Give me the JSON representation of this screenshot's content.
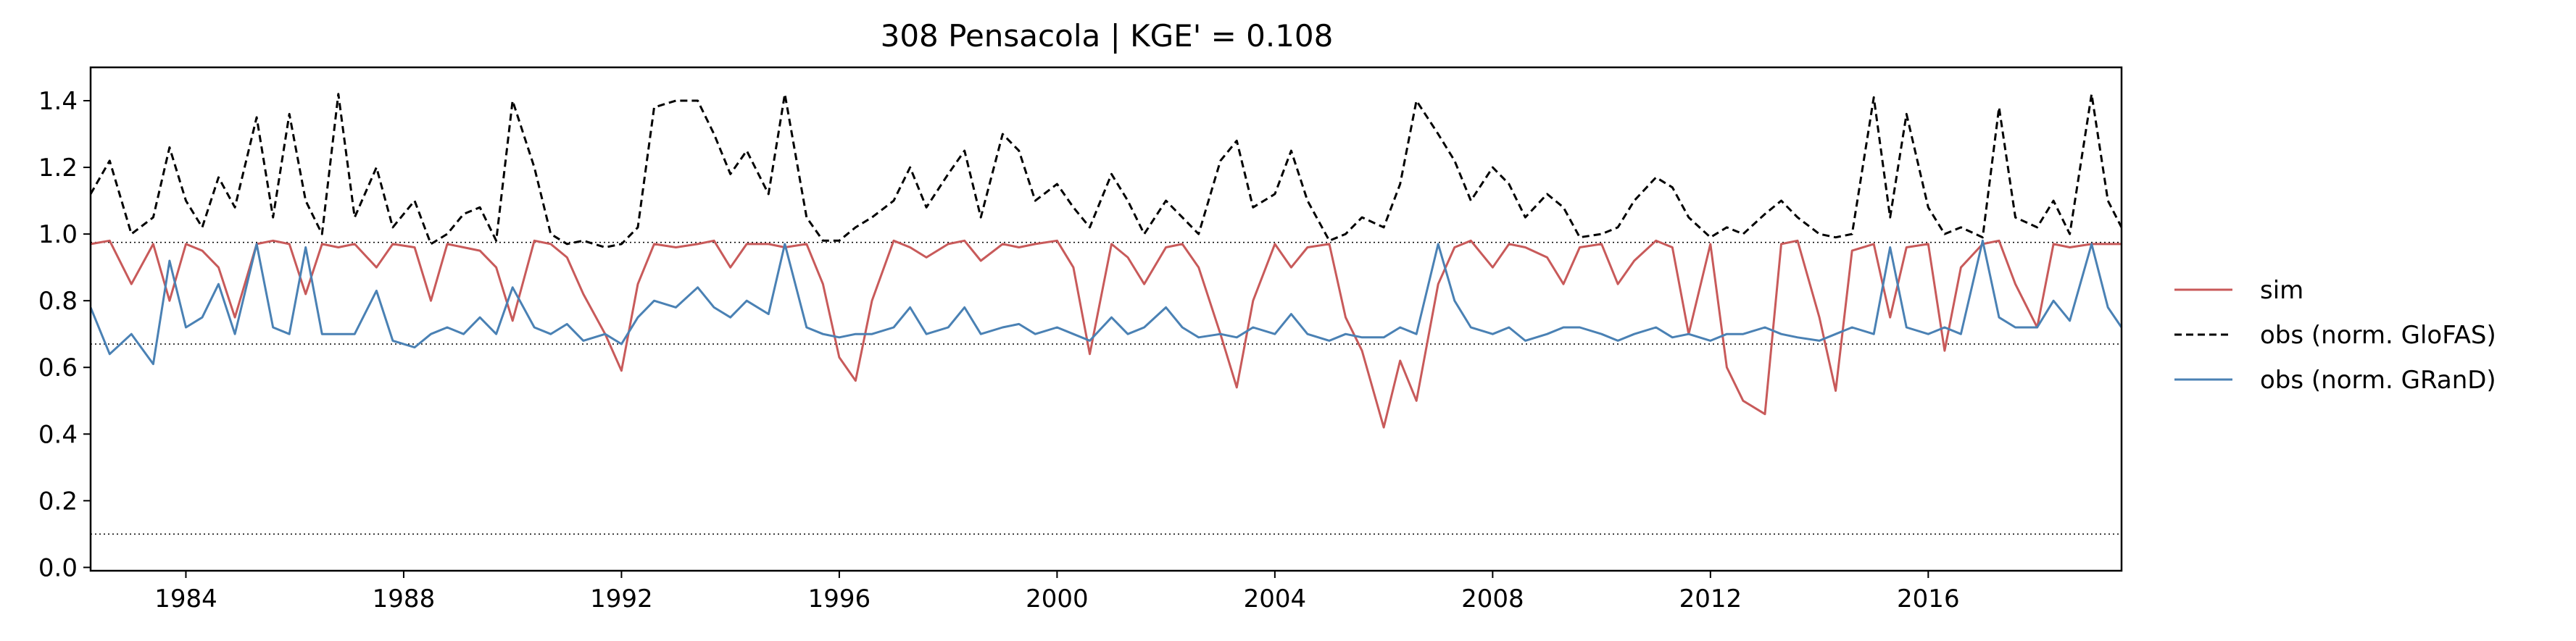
{
  "chart_data": {
    "type": "line",
    "title": "308  Pensacola | KGE' = 0.108",
    "xlabel": "",
    "ylabel": "",
    "xlim": [
      1982.25,
      2019.55
    ],
    "ylim": [
      -0.01,
      1.5
    ],
    "x_ticks": [
      1984,
      1988,
      1992,
      1996,
      2000,
      2004,
      2008,
      2012,
      2016
    ],
    "y_ticks": [
      0.0,
      0.2,
      0.4,
      0.6,
      0.8,
      1.0,
      1.2,
      1.4
    ],
    "y_tick_labels": [
      "0.0",
      "0.2",
      "0.4",
      "0.6",
      "0.8",
      "1.0",
      "1.2",
      "1.4"
    ],
    "grid": false,
    "legend_position": "right-outside",
    "reference_lines": [
      {
        "y": 0.975,
        "style": "dotted"
      },
      {
        "y": 0.67,
        "style": "dotted"
      },
      {
        "y": 0.1,
        "style": "dotted"
      }
    ],
    "series": [
      {
        "name": "sim",
        "color": "#c85a5a",
        "style": "solid",
        "x": [
          1982.25,
          1982.6,
          1983.0,
          1983.4,
          1983.7,
          1984.0,
          1984.3,
          1984.6,
          1984.9,
          1985.3,
          1985.6,
          1985.9,
          1986.2,
          1986.5,
          1986.8,
          1987.1,
          1987.5,
          1987.8,
          1988.2,
          1988.5,
          1988.8,
          1989.1,
          1989.4,
          1989.7,
          1990.0,
          1990.4,
          1990.7,
          1991.0,
          1991.3,
          1991.7,
          1992.0,
          1992.3,
          1992.6,
          1993.0,
          1993.4,
          1993.7,
          1994.0,
          1994.3,
          1994.7,
          1995.0,
          1995.4,
          1995.7,
          1996.0,
          1996.3,
          1996.6,
          1997.0,
          1997.3,
          1997.6,
          1998.0,
          1998.3,
          1998.6,
          1999.0,
          1999.3,
          1999.6,
          2000.0,
          2000.3,
          2000.6,
          2001.0,
          2001.3,
          2001.6,
          2002.0,
          2002.3,
          2002.6,
          2003.0,
          2003.3,
          2003.6,
          2004.0,
          2004.3,
          2004.6,
          2005.0,
          2005.3,
          2005.6,
          2006.0,
          2006.3,
          2006.6,
          2007.0,
          2007.3,
          2007.6,
          2008.0,
          2008.3,
          2008.6,
          2009.0,
          2009.3,
          2009.6,
          2010.0,
          2010.3,
          2010.6,
          2011.0,
          2011.3,
          2011.6,
          2012.0,
          2012.3,
          2012.6,
          2013.0,
          2013.3,
          2013.6,
          2014.0,
          2014.3,
          2014.6,
          2015.0,
          2015.3,
          2015.6,
          2016.0,
          2016.3,
          2016.6,
          2017.0,
          2017.3,
          2017.6,
          2018.0,
          2018.3,
          2018.6,
          2019.0,
          2019.3,
          2019.55
        ],
        "y": [
          0.97,
          0.98,
          0.85,
          0.97,
          0.8,
          0.97,
          0.95,
          0.9,
          0.75,
          0.97,
          0.98,
          0.97,
          0.82,
          0.97,
          0.96,
          0.97,
          0.9,
          0.97,
          0.96,
          0.8,
          0.97,
          0.96,
          0.95,
          0.9,
          0.74,
          0.98,
          0.97,
          0.93,
          0.82,
          0.7,
          0.59,
          0.85,
          0.97,
          0.96,
          0.97,
          0.98,
          0.9,
          0.97,
          0.97,
          0.96,
          0.97,
          0.85,
          0.63,
          0.56,
          0.8,
          0.98,
          0.96,
          0.93,
          0.97,
          0.98,
          0.92,
          0.97,
          0.96,
          0.97,
          0.98,
          0.9,
          0.64,
          0.97,
          0.93,
          0.85,
          0.96,
          0.97,
          0.9,
          0.7,
          0.54,
          0.8,
          0.97,
          0.9,
          0.96,
          0.97,
          0.75,
          0.65,
          0.42,
          0.62,
          0.5,
          0.85,
          0.96,
          0.98,
          0.9,
          0.97,
          0.96,
          0.93,
          0.85,
          0.96,
          0.97,
          0.85,
          0.92,
          0.98,
          0.96,
          0.7,
          0.97,
          0.6,
          0.5,
          0.46,
          0.97,
          0.98,
          0.75,
          0.53,
          0.95,
          0.97,
          0.75,
          0.96,
          0.97,
          0.65,
          0.9,
          0.97,
          0.98,
          0.85,
          0.72,
          0.97,
          0.96,
          0.97,
          0.97,
          0.97
        ]
      },
      {
        "name": "obs (norm. GloFAS)",
        "color": "#000000",
        "style": "dashed",
        "x": [
          1982.25,
          1982.6,
          1983.0,
          1983.4,
          1983.7,
          1984.0,
          1984.3,
          1984.6,
          1984.9,
          1985.3,
          1985.6,
          1985.9,
          1986.2,
          1986.5,
          1986.8,
          1987.1,
          1987.5,
          1987.8,
          1988.2,
          1988.5,
          1988.8,
          1989.1,
          1989.4,
          1989.7,
          1990.0,
          1990.4,
          1990.7,
          1991.0,
          1991.3,
          1991.7,
          1992.0,
          1992.3,
          1992.6,
          1993.0,
          1993.4,
          1993.7,
          1994.0,
          1994.3,
          1994.7,
          1995.0,
          1995.4,
          1995.7,
          1996.0,
          1996.3,
          1996.6,
          1997.0,
          1997.3,
          1997.6,
          1998.0,
          1998.3,
          1998.6,
          1999.0,
          1999.3,
          1999.6,
          2000.0,
          2000.3,
          2000.6,
          2001.0,
          2001.3,
          2001.6,
          2002.0,
          2002.3,
          2002.6,
          2003.0,
          2003.3,
          2003.6,
          2004.0,
          2004.3,
          2004.6,
          2005.0,
          2005.3,
          2005.6,
          2006.0,
          2006.3,
          2006.6,
          2007.0,
          2007.3,
          2007.6,
          2008.0,
          2008.3,
          2008.6,
          2009.0,
          2009.3,
          2009.6,
          2010.0,
          2010.3,
          2010.6,
          2011.0,
          2011.3,
          2011.6,
          2012.0,
          2012.3,
          2012.6,
          2013.0,
          2013.3,
          2013.6,
          2014.0,
          2014.3,
          2014.6,
          2015.0,
          2015.3,
          2015.6,
          2016.0,
          2016.3,
          2016.6,
          2017.0,
          2017.3,
          2017.6,
          2018.0,
          2018.3,
          2018.6,
          2019.0,
          2019.3,
          2019.55
        ],
        "y": [
          1.12,
          1.22,
          1.0,
          1.05,
          1.26,
          1.1,
          1.02,
          1.17,
          1.08,
          1.35,
          1.05,
          1.36,
          1.1,
          1.0,
          1.42,
          1.05,
          1.2,
          1.02,
          1.1,
          0.97,
          1.0,
          1.06,
          1.08,
          0.98,
          1.4,
          1.2,
          1.0,
          0.97,
          0.98,
          0.96,
          0.97,
          1.02,
          1.38,
          1.4,
          1.4,
          1.3,
          1.18,
          1.25,
          1.12,
          1.42,
          1.05,
          0.98,
          0.98,
          1.02,
          1.05,
          1.1,
          1.2,
          1.08,
          1.18,
          1.25,
          1.05,
          1.3,
          1.25,
          1.1,
          1.15,
          1.08,
          1.02,
          1.18,
          1.1,
          1.0,
          1.1,
          1.05,
          1.0,
          1.22,
          1.28,
          1.08,
          1.12,
          1.25,
          1.1,
          0.98,
          1.0,
          1.05,
          1.02,
          1.15,
          1.4,
          1.3,
          1.22,
          1.1,
          1.2,
          1.15,
          1.05,
          1.12,
          1.08,
          0.99,
          1.0,
          1.02,
          1.1,
          1.17,
          1.14,
          1.05,
          0.99,
          1.02,
          1.0,
          1.06,
          1.1,
          1.05,
          1.0,
          0.99,
          1.0,
          1.41,
          1.05,
          1.36,
          1.08,
          1.0,
          1.02,
          0.99,
          1.38,
          1.05,
          1.02,
          1.1,
          1.0,
          1.42,
          1.1,
          1.02
        ]
      },
      {
        "name": "obs (norm. GRanD)",
        "color": "#4a81b4",
        "style": "solid",
        "x": [
          1982.25,
          1982.6,
          1983.0,
          1983.4,
          1983.7,
          1984.0,
          1984.3,
          1984.6,
          1984.9,
          1985.3,
          1985.6,
          1985.9,
          1986.2,
          1986.5,
          1986.8,
          1987.1,
          1987.5,
          1987.8,
          1988.2,
          1988.5,
          1988.8,
          1989.1,
          1989.4,
          1989.7,
          1990.0,
          1990.4,
          1990.7,
          1991.0,
          1991.3,
          1991.7,
          1992.0,
          1992.3,
          1992.6,
          1993.0,
          1993.4,
          1993.7,
          1994.0,
          1994.3,
          1994.7,
          1995.0,
          1995.4,
          1995.7,
          1996.0,
          1996.3,
          1996.6,
          1997.0,
          1997.3,
          1997.6,
          1998.0,
          1998.3,
          1998.6,
          1999.0,
          1999.3,
          1999.6,
          2000.0,
          2000.3,
          2000.6,
          2001.0,
          2001.3,
          2001.6,
          2002.0,
          2002.3,
          2002.6,
          2003.0,
          2003.3,
          2003.6,
          2004.0,
          2004.3,
          2004.6,
          2005.0,
          2005.3,
          2005.6,
          2006.0,
          2006.3,
          2006.6,
          2007.0,
          2007.3,
          2007.6,
          2008.0,
          2008.3,
          2008.6,
          2009.0,
          2009.3,
          2009.6,
          2010.0,
          2010.3,
          2010.6,
          2011.0,
          2011.3,
          2011.6,
          2012.0,
          2012.3,
          2012.6,
          2013.0,
          2013.3,
          2013.6,
          2014.0,
          2014.3,
          2014.6,
          2015.0,
          2015.3,
          2015.6,
          2016.0,
          2016.3,
          2016.6,
          2017.0,
          2017.3,
          2017.6,
          2018.0,
          2018.3,
          2018.6,
          2019.0,
          2019.3,
          2019.55
        ],
        "y": [
          0.78,
          0.64,
          0.7,
          0.61,
          0.92,
          0.72,
          0.75,
          0.85,
          0.7,
          0.97,
          0.72,
          0.7,
          0.96,
          0.7,
          0.7,
          0.7,
          0.83,
          0.68,
          0.66,
          0.7,
          0.72,
          0.7,
          0.75,
          0.7,
          0.84,
          0.72,
          0.7,
          0.73,
          0.68,
          0.7,
          0.67,
          0.75,
          0.8,
          0.78,
          0.84,
          0.78,
          0.75,
          0.8,
          0.76,
          0.97,
          0.72,
          0.7,
          0.69,
          0.7,
          0.7,
          0.72,
          0.78,
          0.7,
          0.72,
          0.78,
          0.7,
          0.72,
          0.73,
          0.7,
          0.72,
          0.7,
          0.68,
          0.75,
          0.7,
          0.72,
          0.78,
          0.72,
          0.69,
          0.7,
          0.69,
          0.72,
          0.7,
          0.76,
          0.7,
          0.68,
          0.7,
          0.69,
          0.69,
          0.72,
          0.7,
          0.97,
          0.8,
          0.72,
          0.7,
          0.72,
          0.68,
          0.7,
          0.72,
          0.72,
          0.7,
          0.68,
          0.7,
          0.72,
          0.69,
          0.7,
          0.68,
          0.7,
          0.7,
          0.72,
          0.7,
          0.69,
          0.68,
          0.7,
          0.72,
          0.7,
          0.96,
          0.72,
          0.7,
          0.72,
          0.7,
          0.98,
          0.75,
          0.72,
          0.72,
          0.8,
          0.74,
          0.97,
          0.78,
          0.72
        ]
      }
    ]
  }
}
